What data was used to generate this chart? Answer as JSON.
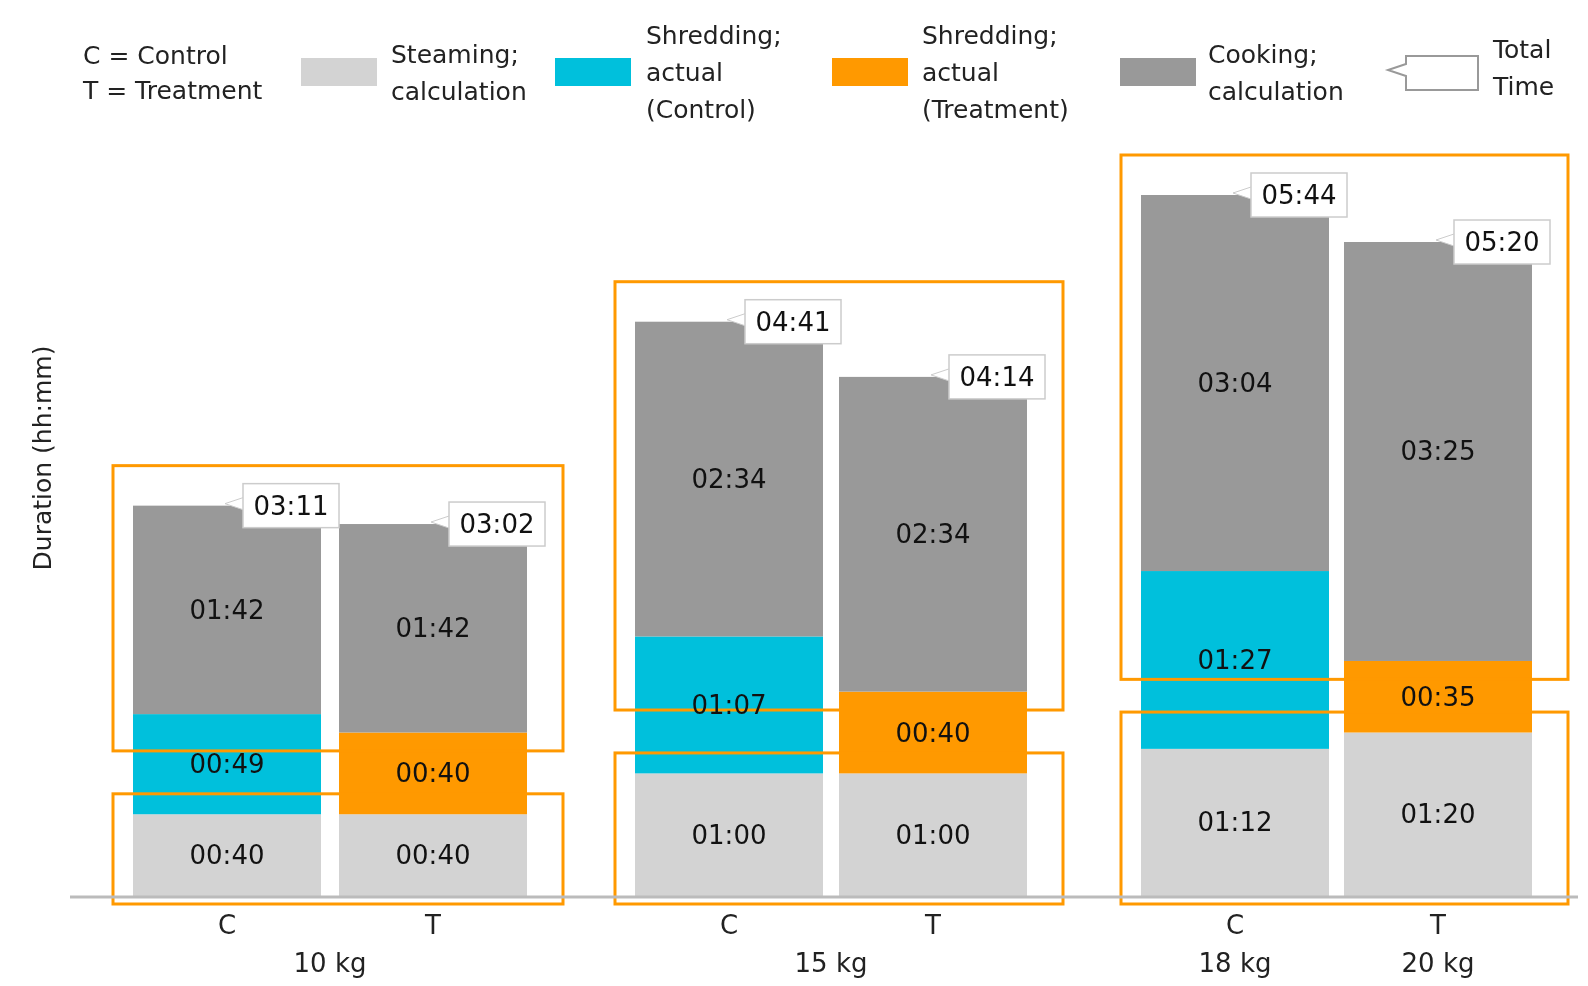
{
  "chart_data": {
    "type": "bar",
    "stacked": true,
    "ylabel": "Duration (hh:mm)",
    "legend": "top",
    "categories": [
      "C",
      "T",
      "C",
      "T",
      "C",
      "T"
    ],
    "series": [
      {
        "name": "Steaming; calculation",
        "color": "#d3d3d3",
        "values": [
          40,
          40,
          60,
          60,
          72,
          80
        ],
        "value_labels": [
          "00:40",
          "00:40",
          "01:00",
          "01:00",
          "01:12",
          "01:20"
        ]
      },
      {
        "name": "Shredding; actual (Control)",
        "color": "#00c0dc",
        "values": [
          49,
          null,
          67,
          null,
          87,
          null
        ],
        "value_labels": [
          "00:49",
          null,
          "01:07",
          null,
          "01:27",
          null
        ]
      },
      {
        "name": "Shredding; actual (Treatment)",
        "color": "#ff9900",
        "values": [
          null,
          40,
          null,
          40,
          null,
          35
        ],
        "value_labels": [
          null,
          "00:40",
          null,
          "00:40",
          null,
          "00:35"
        ]
      },
      {
        "name": "Cooking; calculation",
        "color": "#999999",
        "values": [
          102,
          102,
          154,
          154,
          184,
          205
        ],
        "value_labels": [
          "01:42",
          "01:42",
          "02:34",
          "02:34",
          "03:04",
          "03:25"
        ]
      }
    ],
    "totals": [
      "03:11",
      "03:02",
      "04:41",
      "04:14",
      "05:44",
      "05:20"
    ],
    "annotations": [
      "C = Control",
      "T = Treatment",
      "Total Time",
      "10 kg",
      "15 kg",
      "18 kg",
      "20 kg"
    ]
  }
}
